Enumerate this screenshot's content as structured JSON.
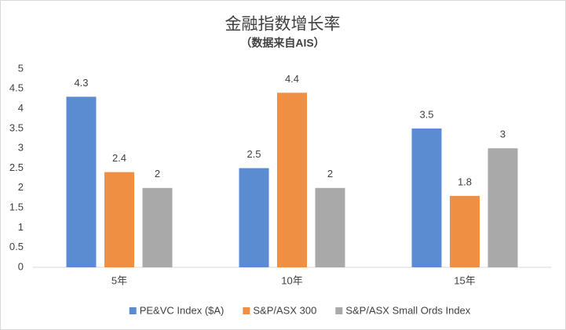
{
  "chart_data": {
    "type": "bar",
    "title": "金融指数增长率",
    "subtitle": "（数据来自AIS）",
    "categories": [
      "5年",
      "10年",
      "15年"
    ],
    "series": [
      {
        "name": "PE&VC Index ($A)",
        "color": "#5b8bd0",
        "values": [
          4.3,
          2.5,
          3.5
        ]
      },
      {
        "name": "S&P/ASX 300",
        "color": "#ee8f44",
        "values": [
          2.4,
          4.4,
          1.8
        ]
      },
      {
        "name": "S&P/ASX Small Ords Index",
        "color": "#a9a9a9",
        "values": [
          2,
          2,
          3
        ]
      }
    ],
    "ylim": [
      0,
      5
    ],
    "yticks": [
      0,
      0.5,
      1,
      1.5,
      2,
      2.5,
      3,
      3.5,
      4,
      4.5,
      5
    ],
    "grid": false,
    "legend": "bottom"
  }
}
